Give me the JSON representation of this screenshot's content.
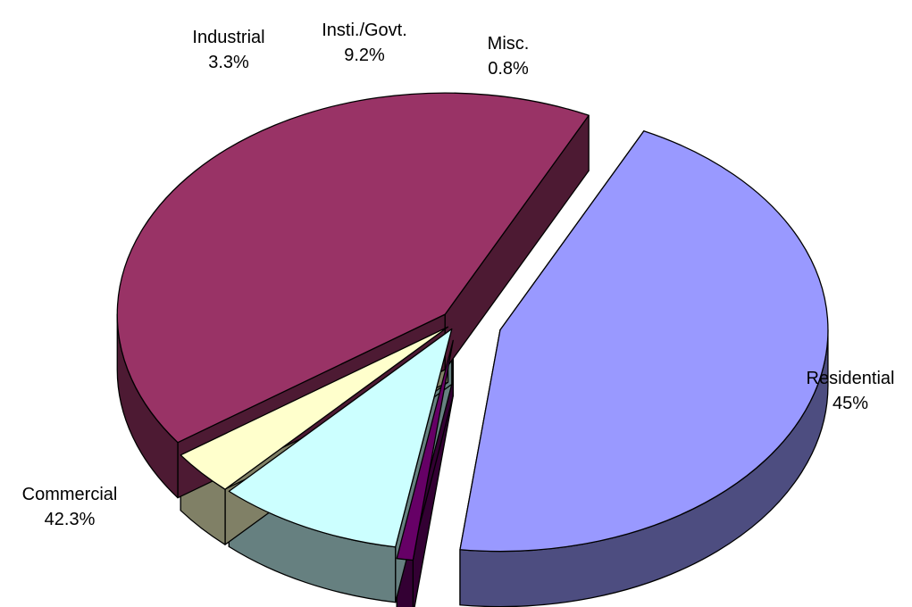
{
  "chart_data": {
    "type": "pie",
    "title": "",
    "style": "3d-exploded",
    "slices": [
      {
        "label": "Residential",
        "value": 45,
        "value_label": "45%",
        "color": "#9999FF",
        "side_color": "#4D4D80"
      },
      {
        "label": "Misc.",
        "value": 0.8,
        "value_label": "0.8%",
        "color": "#660066",
        "side_color": "#330033"
      },
      {
        "label": "Insti./Govt.",
        "value": 9.2,
        "value_label": "9.2%",
        "color": "#CCFFFF",
        "side_color": "#668080"
      },
      {
        "label": "Industrial",
        "value": 3.3,
        "value_label": "3.3%",
        "color": "#FFFFCC",
        "side_color": "#808066"
      },
      {
        "label": "Commercial",
        "value": 42.3,
        "value_label": "42.3%",
        "color": "#993366",
        "side_color": "#4D1A33"
      }
    ]
  }
}
